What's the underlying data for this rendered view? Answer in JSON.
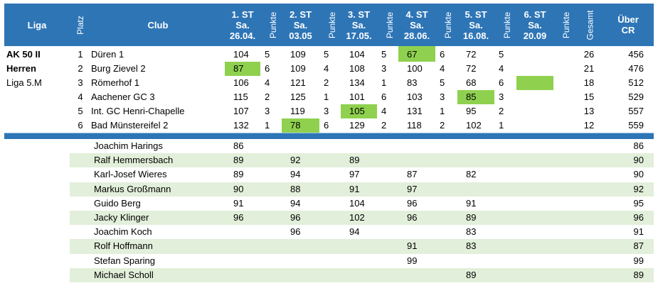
{
  "header": {
    "liga": "Liga",
    "platz": "Platz",
    "club": "Club",
    "rounds": [
      {
        "line1": "1. ST",
        "line2": "Sa.",
        "line3": "26.04."
      },
      {
        "line1": "2. ST",
        "line2": "Sa.",
        "line3": "03.05"
      },
      {
        "line1": "3. ST",
        "line2": "Sa.",
        "line3": "17.05."
      },
      {
        "line1": "4. ST",
        "line2": "Sa.",
        "line3": "28.06."
      },
      {
        "line1": "5. ST",
        "line2": "Sa.",
        "line3": "16.08."
      },
      {
        "line1": "6. ST",
        "line2": "Sa.",
        "line3": "20.09"
      }
    ],
    "punkte": "Punkte",
    "gesamt": "Gesamt",
    "ueber_line1": "Über",
    "ueber_line2": "CR"
  },
  "liga_labels": [
    "AK 50 II",
    "Herren",
    "Liga 5.M"
  ],
  "teams": [
    {
      "platz": "1",
      "club": "Düren 1",
      "s1": "104",
      "p1": "5",
      "s2": "109",
      "p2": "5",
      "s3": "104",
      "p3": "5",
      "s4": "67",
      "p4": "6",
      "s5": "72",
      "p5": "5",
      "s6": "",
      "p6": "",
      "gesamt": "26",
      "cr": "456",
      "highlight": "s4"
    },
    {
      "platz": "2",
      "club": "Burg Zievel 2",
      "s1": "87",
      "p1": "6",
      "s2": "109",
      "p2": "4",
      "s3": "108",
      "p3": "3",
      "s4": "100",
      "p4": "4",
      "s5": "72",
      "p5": "4",
      "s6": "",
      "p6": "",
      "gesamt": "21",
      "cr": "476",
      "highlight": "s1"
    },
    {
      "platz": "3",
      "club": "Römerhof 1",
      "s1": "106",
      "p1": "4",
      "s2": "121",
      "p2": "2",
      "s3": "134",
      "p3": "1",
      "s4": "83",
      "p4": "5",
      "s5": "68",
      "p5": "6",
      "s6": "",
      "p6": "",
      "gesamt": "18",
      "cr": "512",
      "highlight": "s6"
    },
    {
      "platz": "4",
      "club": "Aachener GC 3",
      "s1": "115",
      "p1": "2",
      "s2": "125",
      "p2": "1",
      "s3": "101",
      "p3": "6",
      "s4": "103",
      "p4": "3",
      "s5": "85",
      "p5": "3",
      "s6": "",
      "p6": "",
      "gesamt": "15",
      "cr": "529",
      "highlight": "s5"
    },
    {
      "platz": "5",
      "club": "Int. GC Henri-Chapelle",
      "s1": "107",
      "p1": "3",
      "s2": "119",
      "p2": "3",
      "s3": "105",
      "p3": "4",
      "s4": "131",
      "p4": "1",
      "s5": "95",
      "p5": "2",
      "s6": "",
      "p6": "",
      "gesamt": "13",
      "cr": "557",
      "highlight": "s3"
    },
    {
      "platz": "6",
      "club": "Bad Münstereifel 2",
      "s1": "132",
      "p1": "1",
      "s2": "78",
      "p2": "6",
      "s3": "129",
      "p3": "2",
      "s4": "118",
      "p4": "2",
      "s5": "102",
      "p5": "1",
      "s6": "",
      "p6": "",
      "gesamt": "12",
      "cr": "559",
      "highlight": "s2"
    }
  ],
  "players": [
    {
      "name": "Joachim Harings",
      "s1": "86",
      "s2": "",
      "s3": "",
      "s4": "",
      "s5": "",
      "s6": "",
      "cr": "86"
    },
    {
      "name": "Ralf Hemmersbach",
      "s1": "89",
      "s2": "92",
      "s3": "89",
      "s4": "",
      "s5": "",
      "s6": "",
      "cr": "90"
    },
    {
      "name": "Karl-Josef Wieres",
      "s1": "89",
      "s2": "94",
      "s3": "97",
      "s4": "87",
      "s5": "82",
      "s6": "",
      "cr": "90"
    },
    {
      "name": "Markus Großmann",
      "s1": "90",
      "s2": "88",
      "s3": "91",
      "s4": "97",
      "s5": "",
      "s6": "",
      "cr": "92"
    },
    {
      "name": "Guido Berg",
      "s1": "91",
      "s2": "94",
      "s3": "104",
      "s4": "96",
      "s5": "91",
      "s6": "",
      "cr": "95"
    },
    {
      "name": "Jacky Klinger",
      "s1": "96",
      "s2": "96",
      "s3": "102",
      "s4": "96",
      "s5": "89",
      "s6": "",
      "cr": "96"
    },
    {
      "name": "Joachim Koch",
      "s1": "",
      "s2": "96",
      "s3": "94",
      "s4": "",
      "s5": "83",
      "s6": "",
      "cr": "91"
    },
    {
      "name": "Rolf Hoffmann",
      "s1": "",
      "s2": "",
      "s3": "",
      "s4": "91",
      "s5": "83",
      "s6": "",
      "cr": "87"
    },
    {
      "name": "Stefan Sparing",
      "s1": "",
      "s2": "",
      "s3": "",
      "s4": "99",
      "s5": "",
      "s6": "",
      "cr": "99"
    },
    {
      "name": "Michael Scholl",
      "s1": "",
      "s2": "",
      "s3": "",
      "s4": "",
      "s5": "89",
      "s6": "",
      "cr": "89"
    }
  ],
  "colors": {
    "header_blue": "#2e75b6",
    "highlight_green": "#8fd14f",
    "band_green": "#e2efda"
  }
}
